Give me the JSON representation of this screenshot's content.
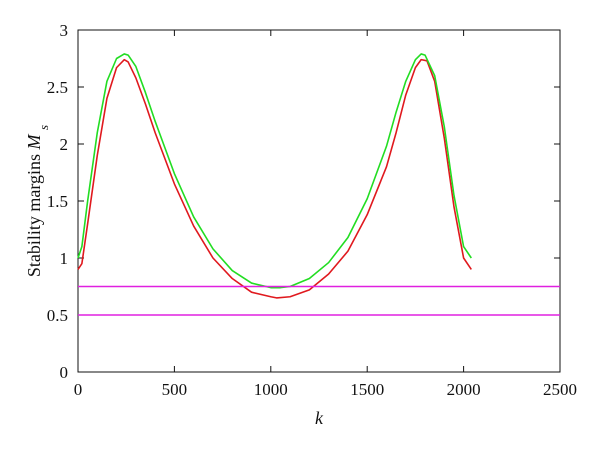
{
  "chart_data": {
    "type": "line",
    "title": "",
    "xlabel": "k",
    "ylabel": "Stability margins",
    "ylabel_symbol": "M",
    "ylabel_subscript": "s",
    "xlim": [
      0,
      2500
    ],
    "ylim": [
      0,
      3
    ],
    "xticks": [
      "0",
      "500",
      "1000",
      "1500",
      "2000",
      "2500"
    ],
    "yticks": [
      "0",
      "0.5",
      "1",
      "1.5",
      "2",
      "2.5",
      "3"
    ],
    "xtick_values": [
      0,
      500,
      1000,
      1500,
      2000,
      2500
    ],
    "ytick_values": [
      0,
      0.5,
      1,
      1.5,
      2,
      2.5,
      3
    ],
    "grid": false,
    "legend": "none",
    "series": [
      {
        "color": "#e0191e",
        "x": [
          0,
          20,
          50,
          100,
          150,
          200,
          240,
          260,
          300,
          350,
          400,
          500,
          600,
          700,
          800,
          900,
          1000,
          1030,
          1100,
          1200,
          1300,
          1400,
          1500,
          1600,
          1650,
          1700,
          1750,
          1780,
          1810,
          1850,
          1900,
          1950,
          2000,
          2040
        ],
        "values": [
          0.9,
          0.95,
          1.3,
          1.9,
          2.4,
          2.67,
          2.74,
          2.72,
          2.58,
          2.35,
          2.1,
          1.65,
          1.28,
          1.0,
          0.82,
          0.7,
          0.66,
          0.65,
          0.66,
          0.72,
          0.86,
          1.06,
          1.38,
          1.8,
          2.1,
          2.43,
          2.67,
          2.74,
          2.73,
          2.55,
          2.05,
          1.45,
          1.0,
          0.9
        ]
      },
      {
        "color": "#22dd22",
        "x": [
          0,
          20,
          50,
          100,
          150,
          200,
          240,
          260,
          300,
          350,
          400,
          500,
          600,
          700,
          800,
          900,
          1000,
          1050,
          1100,
          1200,
          1300,
          1400,
          1500,
          1600,
          1650,
          1700,
          1750,
          1780,
          1800,
          1850,
          1900,
          1950,
          2000,
          2040
        ],
        "values": [
          1.0,
          1.1,
          1.5,
          2.1,
          2.55,
          2.75,
          2.79,
          2.78,
          2.68,
          2.45,
          2.2,
          1.74,
          1.36,
          1.08,
          0.89,
          0.78,
          0.74,
          0.74,
          0.75,
          0.82,
          0.96,
          1.18,
          1.52,
          1.98,
          2.28,
          2.55,
          2.74,
          2.79,
          2.78,
          2.6,
          2.15,
          1.55,
          1.1,
          1.0
        ]
      },
      {
        "color": "#e020e0",
        "x": [
          0,
          2500
        ],
        "values": [
          0.75,
          0.75
        ]
      },
      {
        "color": "#e020e0",
        "x": [
          0,
          2500
        ],
        "values": [
          0.5,
          0.5
        ]
      }
    ]
  }
}
